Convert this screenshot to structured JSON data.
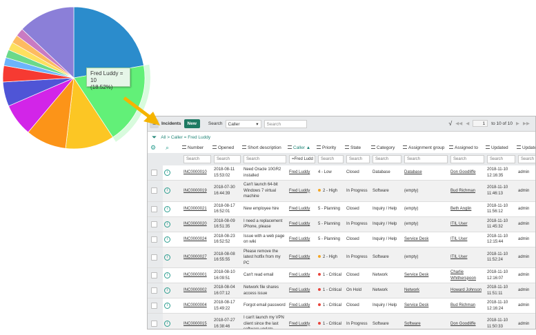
{
  "chart_data": {
    "type": "pie",
    "total": 54,
    "slices": [
      {
        "value": 12,
        "color": "#2b8ccc"
      },
      {
        "name": "Fred Luddy",
        "value": 10,
        "color": "#62f078",
        "highlighted": true
      },
      {
        "value": 6,
        "color": "#fcc624"
      },
      {
        "value": 5,
        "color": "#fc9418"
      },
      {
        "value": 4,
        "color": "#d225e8"
      },
      {
        "value": 3,
        "color": "#4f55d6"
      },
      {
        "value": 2,
        "color": "#f63a32"
      },
      {
        "value": 1,
        "color": "#6cb4fb"
      },
      {
        "value": 1,
        "color": "#6bd98a"
      },
      {
        "value": 1,
        "color": "#fde05e"
      },
      {
        "value": 1,
        "color": "#fdbb60"
      },
      {
        "value": 1,
        "color": "#c97bc2"
      },
      {
        "value": 7,
        "color": "#8b7fd8"
      }
    ],
    "tooltip": {
      "line1": "Fred Luddy = 10",
      "line2": "(18.52%)"
    }
  },
  "header": {
    "title": "Incidents",
    "new_label": "New",
    "search_label": "Search",
    "search_field": "Caller",
    "search_placeholder": "Search",
    "page": "1",
    "page_range": "to 10 of 10"
  },
  "breadcrumb": "All > Caller = Fred Luddy",
  "columns": [
    "Number",
    "Opened",
    "Short description",
    "Caller ▲",
    "Priority",
    "State",
    "Category",
    "Assignment group",
    "Assigned to",
    "Updated",
    "Updated by"
  ],
  "column_filters": [
    "Search",
    "Search",
    "Search",
    "=Fred Ludd",
    "Search",
    "Search",
    "Search",
    "Search",
    "Search",
    "Search",
    "Search"
  ],
  "priority_colors": {
    "2 - High": "#f5a623",
    "1 - Critical": "#e8453c"
  },
  "rows": [
    [
      "INC0000010",
      "2018-08-11 15:53:02",
      "Need Oracle 10GR2 installed",
      "Fred Luddy",
      "4 - Low",
      "Closed",
      "Database",
      "Database",
      "Don Goodliffe",
      "2018-11-10 12:16:35",
      "admin"
    ],
    [
      "INC0000019",
      "2018-07-30 16:44:39",
      "Can't launch 64-bit Windows 7 virtual machine",
      "Fred Luddy",
      "2 - High",
      "In Progress",
      "Software",
      "(empty)",
      "Bud Richman",
      "2018-11-10 11:46:13",
      "admin"
    ],
    [
      "INC0000021",
      "2018-08-17 16:52:01",
      "New employee hire",
      "Fred Luddy",
      "5 - Planning",
      "Closed",
      "Inquiry / Help",
      "(empty)",
      "Beth Anglin",
      "2018-11-10 11:56:12",
      "admin"
    ],
    [
      "INC0000020",
      "2018-08-09 16:51:35",
      "I need a replacement iPhone, please",
      "Fred Luddy",
      "5 - Planning",
      "In Progress",
      "Inquiry / Help",
      "(empty)",
      "ITIL User",
      "2018-11-10 11:45:32",
      "admin"
    ],
    [
      "INC0000024",
      "2018-08-23 16:52:52",
      "Issue with a web page on wiki",
      "Fred Luddy",
      "5 - Planning",
      "Closed",
      "Inquiry / Help",
      "Service Desk",
      "ITIL User",
      "2018-11-10 12:15:44",
      "admin"
    ],
    [
      "INC0000027",
      "2018-08-08 16:55:55",
      "Please remove the latest hotfix from my PC",
      "Fred Luddy",
      "2 - High",
      "In Progress",
      "Software",
      "(empty)",
      "ITIL User",
      "2018-11-10 11:52:24",
      "admin"
    ],
    [
      "INC0000001",
      "2018-08-10 16:09:51",
      "Can't read email",
      "Fred Luddy",
      "1 - Critical",
      "Closed",
      "Network",
      "Service Desk",
      "Charlie Whitherspoon",
      "2018-11-10 12:16:07",
      "admin"
    ],
    [
      "INC0000002",
      "2018-08-04 16:07:12",
      "Network file shares access issue",
      "Fred Luddy",
      "1 - Critical",
      "On Hold",
      "Network",
      "Network",
      "Howard Johnson",
      "2018-11-10 11:51:11",
      "admin"
    ],
    [
      "INC0000004",
      "2018-08-17 15:49:22",
      "Forgot email password",
      "Fred Luddy",
      "1 - Critical",
      "Closed",
      "Inquiry / Help",
      "Service Desk",
      "Bud Richman",
      "2018-11-10 12:16:24",
      "admin"
    ],
    [
      "INC0000015",
      "2018-07-27 16:38:46",
      "I can't launch my VPN client since the last software update",
      "Fred Luddy",
      "1 - Critical",
      "In Progress",
      "Software",
      "Software",
      "Don Goodliffe",
      "2018-11-10 11:50:33",
      "admin"
    ]
  ]
}
